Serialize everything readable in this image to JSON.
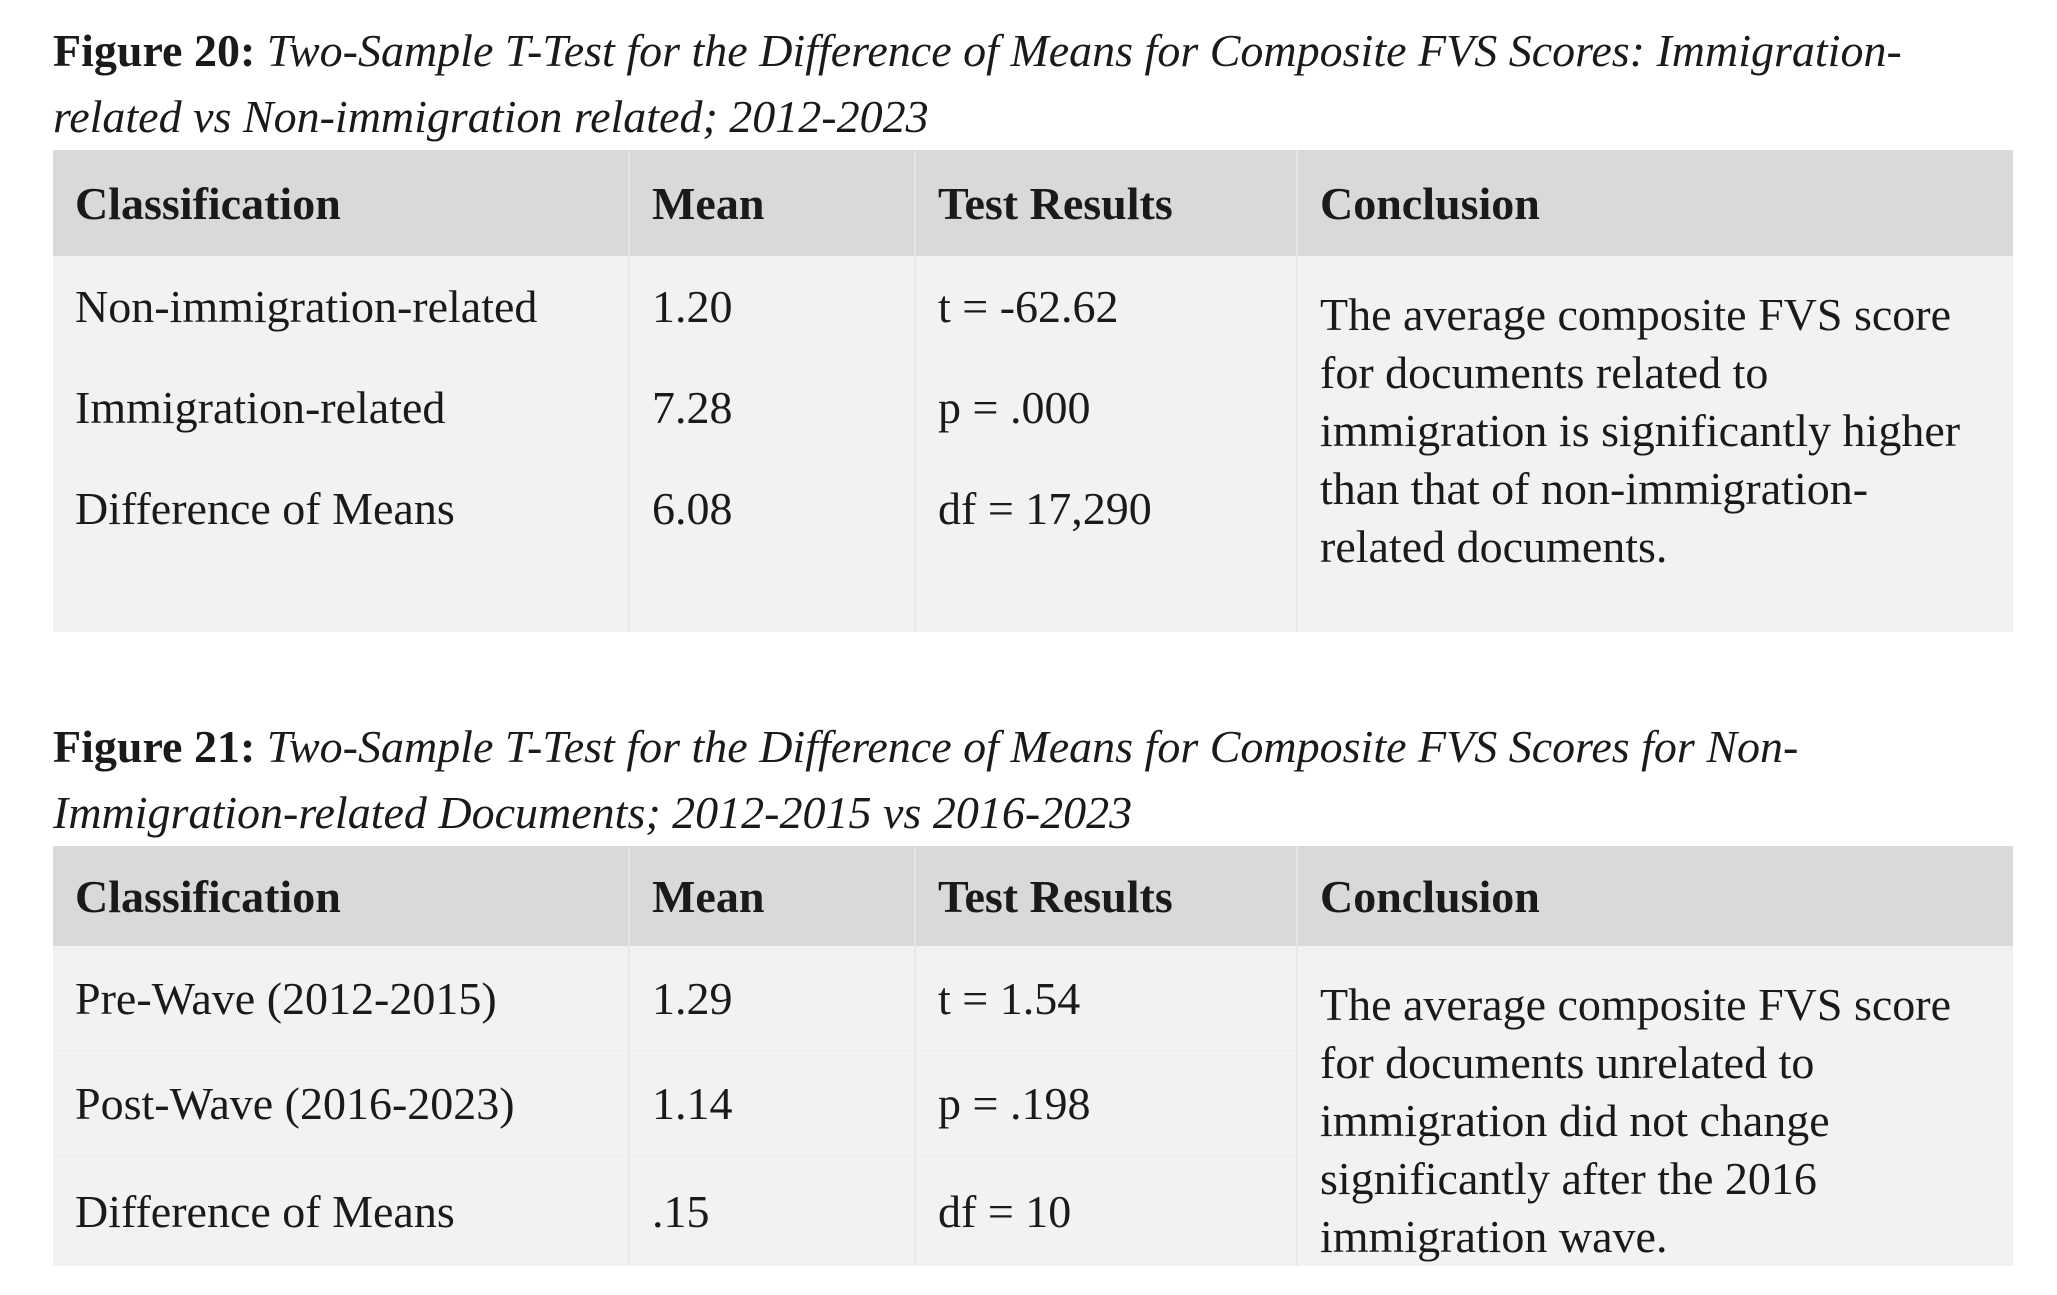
{
  "figures": [
    {
      "label": "Figure 20:",
      "title": "Two-Sample T-Test for the Difference of Means for Composite FVS Scores: Immigration-related vs Non-immigration related; 2012-2023",
      "headers": [
        "Classification",
        "Mean",
        "Test Results",
        "Conclusion"
      ],
      "rows": [
        {
          "classification": "Non-immigration-related",
          "mean": "1.20",
          "test": "t = -62.62"
        },
        {
          "classification": "Immigration-related",
          "mean": "7.28",
          "test": "p = .000"
        },
        {
          "classification": "Difference of Means",
          "mean": "6.08",
          "test": "df = 17,290"
        }
      ],
      "conclusion": "The average composite FVS score for documents related to immigration is significantly higher than that of non-immigration-related documents."
    },
    {
      "label": "Figure 21:",
      "title": "Two-Sample T-Test for the Difference of Means for Composite FVS Scores for Non-Immigration-related Documents; 2012-2015 vs 2016-2023",
      "headers": [
        "Classification",
        "Mean",
        "Test Results",
        "Conclusion"
      ],
      "rows": [
        {
          "classification": "Pre-Wave (2012-2015)",
          "mean": "1.29",
          "test": "t = 1.54"
        },
        {
          "classification": "Post-Wave (2016-2023)",
          "mean": "1.14",
          "test": "p = .198"
        },
        {
          "classification": "Difference of Means",
          "mean": ".15",
          "test": "df = 10"
        }
      ],
      "conclusion": "The average composite FVS score for documents unrelated to immigration did not change significantly after the 2016 immigration wave."
    }
  ]
}
